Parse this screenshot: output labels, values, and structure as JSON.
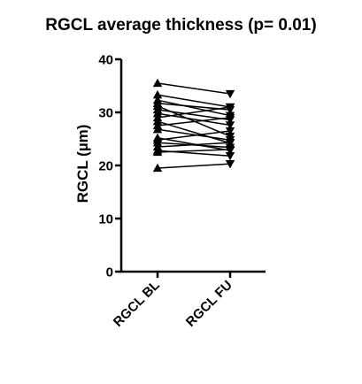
{
  "chart_data": {
    "type": "line",
    "title": "RGCL average thickness (p= 0.01)",
    "ylabel": "RGCL (µm)",
    "xlabel": "",
    "categories": [
      "RGCL BL",
      "RGCL FU"
    ],
    "ylim": [
      0,
      40
    ],
    "yticks": [
      0,
      10,
      20,
      30,
      40
    ],
    "grid": false,
    "markers": {
      "baseline": "triangle-up",
      "followup": "triangle-down"
    },
    "pairs": [
      [
        35.5,
        33.5
      ],
      [
        33.3,
        31.0
      ],
      [
        32.3,
        29.4
      ],
      [
        31.7,
        30.5
      ],
      [
        31.2,
        25.5
      ],
      [
        30.5,
        28.6
      ],
      [
        29.8,
        27.6
      ],
      [
        29.0,
        31.0
      ],
      [
        28.3,
        24.2
      ],
      [
        27.5,
        29.0
      ],
      [
        26.8,
        24.8
      ],
      [
        25.2,
        22.8
      ],
      [
        24.8,
        26.5
      ],
      [
        24.3,
        23.4
      ],
      [
        23.5,
        24.3
      ],
      [
        22.8,
        21.8
      ],
      [
        22.5,
        23.0
      ],
      [
        19.5,
        20.3
      ]
    ]
  }
}
